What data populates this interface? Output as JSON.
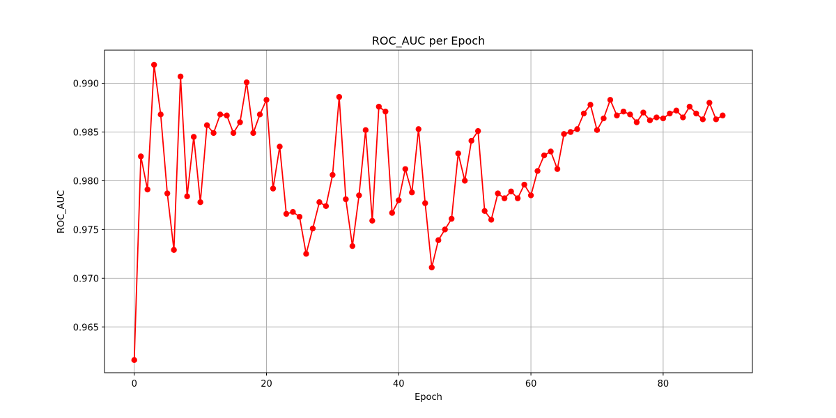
{
  "chart_data": {
    "type": "line",
    "title": "ROC_AUC per Epoch",
    "xlabel": "Epoch",
    "ylabel": "ROC_AUC",
    "xlim": [
      -4.5,
      93.5
    ],
    "ylim": [
      0.9603,
      0.9934
    ],
    "grid": true,
    "line_color": "#ff0000",
    "marker": "circle",
    "x_ticks": [
      0,
      20,
      40,
      60,
      80
    ],
    "y_ticks": [
      0.965,
      0.97,
      0.975,
      0.98,
      0.985,
      0.99
    ],
    "y_tick_labels": [
      "0.965",
      "0.970",
      "0.975",
      "0.980",
      "0.985",
      "0.990"
    ],
    "series": [
      {
        "x": [
          0,
          1,
          2,
          3,
          4,
          5,
          6,
          7,
          8,
          9,
          10,
          11,
          12,
          13,
          14,
          15,
          16,
          17,
          18,
          19,
          20,
          21,
          22,
          23,
          24,
          25,
          26,
          27,
          28,
          29,
          30,
          31,
          32,
          33,
          34,
          35,
          36,
          37,
          38,
          39,
          40,
          41,
          42,
          43,
          44,
          45,
          46,
          47,
          48,
          49,
          50,
          51,
          52,
          53,
          54,
          55,
          56,
          57,
          58,
          59,
          60,
          61,
          62,
          63,
          64,
          65,
          66,
          67,
          68,
          69,
          70,
          71,
          72,
          73,
          74,
          75,
          76,
          77,
          78,
          79,
          80,
          81,
          82,
          83,
          84,
          85,
          86,
          87,
          88,
          89
        ],
        "values": [
          0.9616,
          0.9825,
          0.9791,
          0.9919,
          0.9868,
          0.9787,
          0.9729,
          0.9907,
          0.9784,
          0.9845,
          0.9778,
          0.9857,
          0.9849,
          0.9868,
          0.9867,
          0.9849,
          0.986,
          0.9901,
          0.9849,
          0.9868,
          0.9883,
          0.9792,
          0.9835,
          0.9766,
          0.9768,
          0.9763,
          0.9725,
          0.9751,
          0.9778,
          0.9774,
          0.9806,
          0.9886,
          0.9781,
          0.9733,
          0.9785,
          0.9852,
          0.9759,
          0.9876,
          0.9871,
          0.9767,
          0.978,
          0.9812,
          0.9788,
          0.9853,
          0.9777,
          0.9711,
          0.9739,
          0.975,
          0.9761,
          0.9828,
          0.98,
          0.9841,
          0.9851,
          0.9769,
          0.976,
          0.9787,
          0.9782,
          0.9789,
          0.9782,
          0.9796,
          0.9785,
          0.981,
          0.9826,
          0.983,
          0.9812,
          0.9848,
          0.985,
          0.9853,
          0.9869,
          0.9878,
          0.9852,
          0.9864,
          0.9883,
          0.9867,
          0.9871,
          0.9868,
          0.986,
          0.987,
          0.9862,
          0.9865,
          0.9864,
          0.9869,
          0.9872,
          0.9865,
          0.9876,
          0.9869,
          0.9863,
          0.988,
          0.9863,
          0.9867
        ]
      }
    ]
  }
}
